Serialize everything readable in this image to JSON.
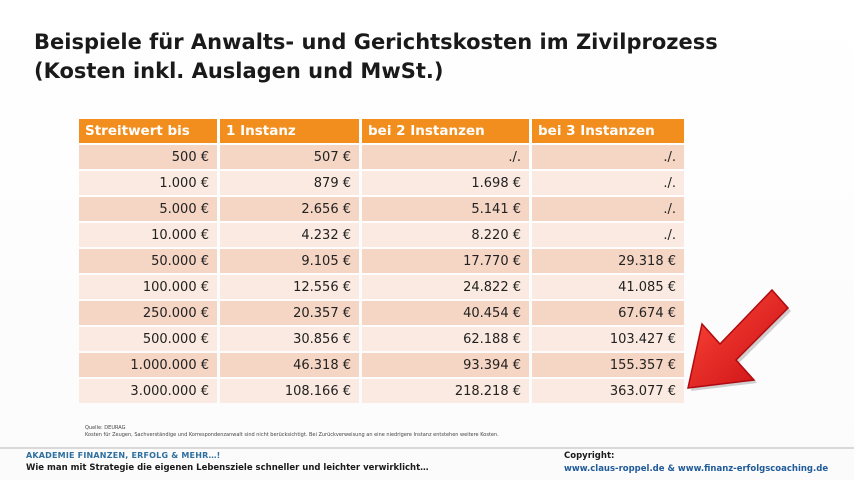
{
  "title": {
    "line1": "Beispiele für Anwalts- und Gerichtskosten im Zivilprozess",
    "line2": "(Kosten inkl. Auslagen und MwSt.)"
  },
  "table": {
    "headers": [
      "Streitwert bis",
      "1 Instanz",
      "bei 2 Instanzen",
      "bei 3 Instanzen"
    ],
    "rows": [
      [
        "500 €",
        "507 €",
        "./.",
        "./."
      ],
      [
        "1.000 €",
        "879 €",
        "1.698 €",
        "./."
      ],
      [
        "5.000 €",
        "2.656 €",
        "5.141 €",
        "./."
      ],
      [
        "10.000 €",
        "4.232 €",
        "8.220 €",
        "./."
      ],
      [
        "50.000 €",
        "9.105 €",
        "17.770 €",
        "29.318 €"
      ],
      [
        "100.000 €",
        "12.556 €",
        "24.822 €",
        "41.085 €"
      ],
      [
        "250.000 €",
        "20.357 €",
        "40.454 €",
        "67.674 €"
      ],
      [
        "500.000 €",
        "30.856 €",
        "62.188 €",
        "103.427 €"
      ],
      [
        "1.000.000 €",
        "46.318 €",
        "93.394 €",
        "155.357 €"
      ],
      [
        "3.000.000 €",
        "108.166 €",
        "218.218 €",
        "363.077 €"
      ]
    ]
  },
  "source": {
    "line1": "Quelle: DEURAG",
    "line2": "Kosten für Zeugen, Sachverständige und Korrespondenzanwalt sind nicht berücksichtigt. Bei Zurückverweisung an eine niedrigere Instanz entstehen weitere Kosten."
  },
  "footer": {
    "brand": "AKADEMIE FINANZEN, ERFOLG & MEHR…!",
    "slogan": "Wie man mit Strategie die eigenen Lebensziele schneller und leichter verwirklicht…",
    "copyright_label": "Copyright:",
    "copyright_links": "www.claus-roppel.de & www.finanz-erfolgscoaching.de"
  },
  "colors": {
    "header": "#f28e1d",
    "row_dark": "#f5d5c4",
    "row_light": "#fbeae1",
    "arrow": "#e8141b",
    "brand": "#2e6f9e"
  },
  "icons": {
    "arrow": "red-arrow-icon"
  }
}
